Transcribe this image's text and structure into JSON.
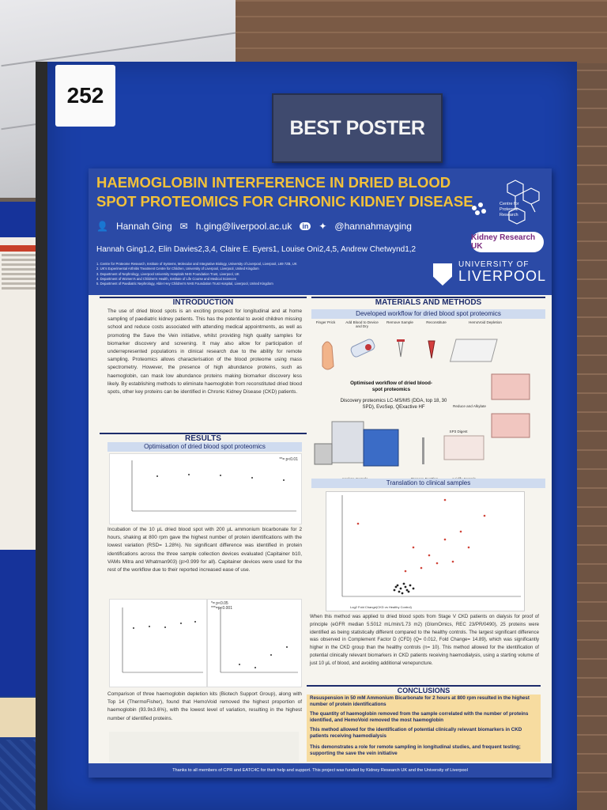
{
  "booth_number": "252",
  "award_sign": "BEST POSTER",
  "poster": {
    "title": "HAEMOGLOBIN INTERFERENCE IN DRIED BLOOD SPOT PROTEOMICS FOR CHRONIC KIDNEY DISEASE",
    "presenter": "Hannah Ging",
    "email": "h.ging@liverpool.ac.uk",
    "handle": "@hannahmayging",
    "authors": "Hannah Ging1,2, Elin Davies2,3,4, Claire E. Eyers1, Louise Oni2,4,5, Andrew Chetwynd1,2",
    "affiliations": [
      "1. Centre for Proteome Research, Institute of Systems, Molecular and Integrative Biology, University of Liverpool, Liverpool, L69 7ZB, UK",
      "2. UK's Experimental Arthritis Treatment Centre for Children, University of Liverpool, Liverpool, United Kingdom",
      "3. Department of Nephrology, Liverpool University Hospitals NHS Foundation Trust, Liverpool, UK",
      "4. Department of Women's and Children's Health, Institute of Life Course and Medical Sciences",
      "5. Department of Paediatric Nephrology, Alder Hey Children's NHS Foundation Trust Hospital, Liverpool, United Kingdom"
    ],
    "logos": {
      "cpr": "Centre for Proteome Research",
      "kidney": "Kidney Research UK",
      "uni_top": "UNIVERSITY OF",
      "uni_main": "LIVERPOOL"
    },
    "intro_title": "INTRODUCTION",
    "intro_text": "The use of dried blood spots is an exciting prospect for longitudinal and at home sampling of paediatric kidney patients. This has the potential to avoid children missing school and reduce costs associated with attending medical appointments, as well as promoting the Save the Vein initiative, whilst providing high quality samples for biomarker discovery and screening. It may also allow for participation of underrepresented populations in clinical research due to the ability for remote sampling. Proteomics allows characterisation of the blood proteome using mass spectrometry. However, the presence of high abundance proteins, such as haemoglobin, can mask low abundance proteins making biomarker discovery less likely. By establishing methods to eliminate haemoglobin from reconstituted dried blood spots, other key proteins can be identified in Chronic Kidney Disease (CKD) patients.",
    "methods_title": "MATERIALS AND METHODS",
    "methods_sub": "Developed workflow for dried blood spot proteomics",
    "workflow_steps": [
      "Finger Prick",
      "Add Blood to Device and Dry",
      "Remove Sample",
      "Reconstitute",
      "HemoVoid Depletion",
      "Reduce and Alkylate",
      "SP3 Digest",
      "Acidify Sample",
      "Prepare EvoTips",
      "Analyse Sample"
    ],
    "workflow_title": "Optimised workflow of dried blood-spot proteomics",
    "workflow_detail": "Discovery proteomics LC-MS/MS (DDA, top 18, 30 SPD), EvoSep, QExactive HF",
    "results_title": "RESULTS",
    "results_sub": "Optimisation of dried blood spot proteomics",
    "results_text1": "Incubation of the 10 µL dried blood spot with 200 µL ammonium bicarbonate for 2 hours, shaking at 800 rpm gave the highest number of protein identifications with the lowest variation (RSD= 1.28%). No significant difference was identified in protein identifications across the three sample collection devices evaluated (Capitainer b10, VAMs Mitra and Whatman903) (p>0.999 for all). Capitainer devices were used for the rest of the workflow due to their reported increased ease of use.",
    "results_text2": "Comparison of three haemoglobin depletion kits (Biotech Support Group), along with Top 14 (ThermoFisher), found that HemoVoid removed the highest proportion of haemoglobin (93.9±3.6%), with the lowest level of variation, resulting in the highest number of identified proteins.",
    "chart1_sig": "**= p<0.01",
    "chart2_sig": "*= p<0.05\n***=p<0.001",
    "translation_sub": "Translation to clinical samples",
    "translation_text": "When this method was applied to dried blood spots from Stage V CKD patients on dialysis for proof of principle (eGFR median 5.5012 mL/min/1.73 m2) (GlomOmics, REC 23/PR/0490), 25 proteins were identified as being statistically different compared to the healthy controls. The largest significant difference was observed in Complement Factor D (CFD) (Q= 0.012, Fold Change= 14.89), which was significantly higher in the CKD group than the healthy controls (n= 10). This method allowed for the identification of potential clinically relevant biomarkers in CKD patients receiving haemodialysis, using a starting volume of just 10 µL of blood, and avoiding additional venepuncture.",
    "volcano_xlabel": "Log2 Fold Change(CKD vs Healthy Control)",
    "conclusions_title": "CONCLUSIONS",
    "conclusions": [
      "Resuspension in 50 mM Ammonium Bicarbonate for 2 hours at 800 rpm resulted in the highest number of protein identifications",
      "The quantity of haemoglobin removed from the sample correlated with the number of proteins identified, and HemoVoid removed the most haemoglobin",
      "This method allowed for the identification of potential clinically relevant biomarkers in CKD patients receiving haemodialysis",
      "This demonstrates a role for remote sampling in longitudinal studies, and frequent testing; supporting the save the vein initiative"
    ],
    "footer": "Thanks to all members of CPR and EATC4C for their help and support. This project was funded by Kidney Research UK and the University of Liverpool"
  },
  "colors": {
    "board": "#1a3fa8",
    "header": "#2b4aa6",
    "title": "#f2c13a",
    "conclusion_bg": "#f7dca0"
  }
}
